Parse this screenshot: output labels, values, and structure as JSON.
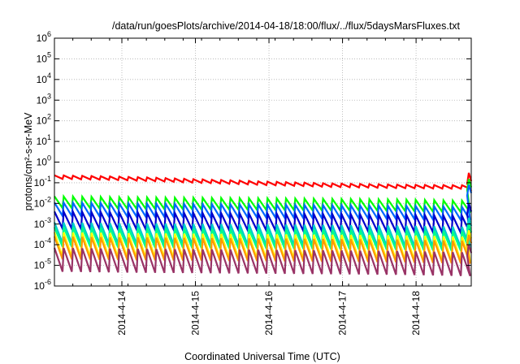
{
  "chart_data": {
    "type": "line",
    "title": "/data/run/goesPlots/archive/2014-04-18/18:00/flux/../flux/5daysMarsFluxes.txt",
    "xlabel": "Coordinated Universal Time (UTC)",
    "ylabel": "protons/cm²-s-sr-MeV",
    "y_scale": "log",
    "ylim": [
      1e-06,
      1000000.0
    ],
    "y_ticks": [
      {
        "base": "10",
        "exp": "6",
        "value": 1000000.0
      },
      {
        "base": "10",
        "exp": "5",
        "value": 100000.0
      },
      {
        "base": "10",
        "exp": "4",
        "value": 10000.0
      },
      {
        "base": "10",
        "exp": "3",
        "value": 1000.0
      },
      {
        "base": "10",
        "exp": "2",
        "value": 100.0
      },
      {
        "base": "10",
        "exp": "1",
        "value": 10.0
      },
      {
        "base": "10",
        "exp": "0",
        "value": 1.0
      },
      {
        "base": "10",
        "exp": "-1",
        "value": 0.1
      },
      {
        "base": "10",
        "exp": "-2",
        "value": 0.01
      },
      {
        "base": "10",
        "exp": "-3",
        "value": 0.001
      },
      {
        "base": "10",
        "exp": "-4",
        "value": 0.0001
      },
      {
        "base": "10",
        "exp": "-5",
        "value": 1e-05
      },
      {
        "base": "10",
        "exp": "-6",
        "value": 1e-06
      }
    ],
    "x_ticks": [
      "2014-4-14",
      "2014-4-15",
      "2014-4-16",
      "2014-4-17",
      "2014-4-18"
    ],
    "xlim": [
      "2014-04-13T02:00",
      "2014-04-18T18:00"
    ],
    "grid": true,
    "series": [
      {
        "color": "#ff0000",
        "style": "sawtooth",
        "low": 0.1,
        "high": 0.22,
        "trend": [
          0.2,
          0.17,
          0.13,
          0.1,
          0.08,
          0.07,
          0.065
        ],
        "end_spike": 0.3
      },
      {
        "color": "#00ff00",
        "style": "sawtooth",
        "low": 0.006,
        "high": 0.022,
        "trend_factor": [
          1.0,
          0.9,
          0.85,
          0.8,
          0.75,
          0.7,
          0.6
        ],
        "end_spike": 0.15
      },
      {
        "color": "#0066ff",
        "style": "sawtooth",
        "low": 0.0025,
        "high": 0.011,
        "trend_factor": [
          1.0,
          0.9,
          0.85,
          0.8,
          0.75,
          0.7,
          0.6
        ],
        "end_spike": 0.08
      },
      {
        "color": "#0000cc",
        "style": "sawtooth",
        "low": 0.0006,
        "high": 0.004,
        "trend_factor": [
          1.0,
          0.9,
          0.85,
          0.8,
          0.75,
          0.7,
          0.6
        ],
        "end_spike": 0.01
      },
      {
        "color": "#00cccc",
        "style": "sawtooth",
        "low": 0.00012,
        "high": 0.0012,
        "trend_factor": [
          1.0,
          0.9,
          0.85,
          0.8,
          0.75,
          0.7,
          0.6
        ],
        "end_spike": 0.002
      },
      {
        "color": "#00ff88",
        "style": "sawtooth",
        "low": 8e-05,
        "high": 0.0007,
        "trend_factor": [
          1.0,
          0.9,
          0.85,
          0.8,
          0.75,
          0.7,
          0.6
        ],
        "end_spike": 0.001
      },
      {
        "color": "#ffff00",
        "style": "sawtooth",
        "low": 2.5e-05,
        "high": 0.0004,
        "trend_factor": [
          1.0,
          0.9,
          0.85,
          0.8,
          0.75,
          0.7,
          0.6
        ],
        "end_spike": 0.0005
      },
      {
        "color": "#ff9900",
        "style": "sawtooth",
        "low": 2e-05,
        "high": 0.00025,
        "trend_factor": [
          1.0,
          0.9,
          0.85,
          0.8,
          0.75,
          0.7,
          0.6
        ],
        "end_spike": 0.0003
      },
      {
        "color": "#993366",
        "style": "sawtooth",
        "low": 5e-06,
        "high": 7e-05,
        "trend_factor": [
          1.0,
          0.9,
          0.85,
          0.8,
          0.75,
          0.7,
          0.6
        ],
        "end_spike": 0.0001
      }
    ],
    "cycles_per_day": 8
  }
}
